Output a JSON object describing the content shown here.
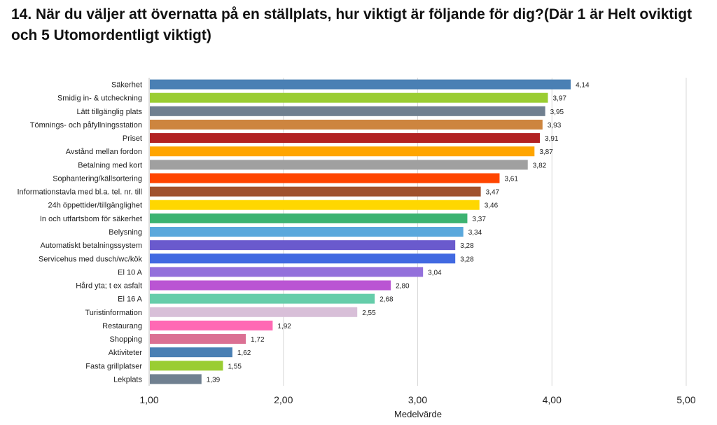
{
  "chart_data": {
    "type": "bar",
    "orientation": "horizontal",
    "title": "14. När du väljer att övernatta på en ställplats, hur viktigt är följande för dig?(Där 1 är Helt oviktigt och 5 Utomordentligt viktigt)",
    "xlabel": "Medelvärde",
    "ylabel": "",
    "xlim": [
      1,
      5
    ],
    "xticks": [
      "1,00",
      "2,00",
      "3,00",
      "4,00",
      "5,00"
    ],
    "grid": true,
    "legend": "none",
    "categories": [
      "Säkerhet",
      "Smidig in- & utcheckning",
      "Lätt tillgänglig plats",
      "Tömnings- och påfyllningsstation",
      "Priset",
      "Avstånd mellan fordon",
      "Betalning med kort",
      "Sophantering/källsortering",
      "Informationstavla med bl.a. tel. nr. till",
      "24h öppettider/tillgänglighet",
      "In och utfartsbom för säkerhet",
      "Belysning",
      "Automatiskt betalningssystem",
      "Servicehus med dusch/wc/kök",
      "El 10 A",
      "Hård yta; t ex asfalt",
      "El 16 A",
      "Turistinformation",
      "Restaurang",
      "Shopping",
      "Aktiviteter",
      "Fasta grillplatser",
      "Lekplats"
    ],
    "values": [
      4.14,
      3.97,
      3.95,
      3.93,
      3.91,
      3.87,
      3.82,
      3.61,
      3.47,
      3.46,
      3.37,
      3.34,
      3.28,
      3.28,
      3.04,
      2.8,
      2.68,
      2.55,
      1.92,
      1.72,
      1.62,
      1.55,
      1.39
    ],
    "value_labels": [
      "4,14",
      "3,97",
      "3,95",
      "3,93",
      "3,91",
      "3,87",
      "3,82",
      "3,61",
      "3,47",
      "3,46",
      "3,37",
      "3,34",
      "3,28",
      "3,28",
      "3,04",
      "2,80",
      "2,68",
      "2,55",
      "1,92",
      "1,72",
      "1,62",
      "1,55",
      "1,39"
    ],
    "colors": [
      "#4A80B4",
      "#9ACD32",
      "#708090",
      "#CD853F",
      "#B22222",
      "#FFA500",
      "#A0A0A0",
      "#FF4500",
      "#A0522D",
      "#FFD700",
      "#3CB371",
      "#5AA8DC",
      "#6A5ACD",
      "#4169E1",
      "#9370DB",
      "#BA55D3",
      "#66CDAA",
      "#D8BFD8",
      "#FF69B4",
      "#DB7093",
      "#4A80B4",
      "#9ACD32",
      "#708090"
    ]
  }
}
